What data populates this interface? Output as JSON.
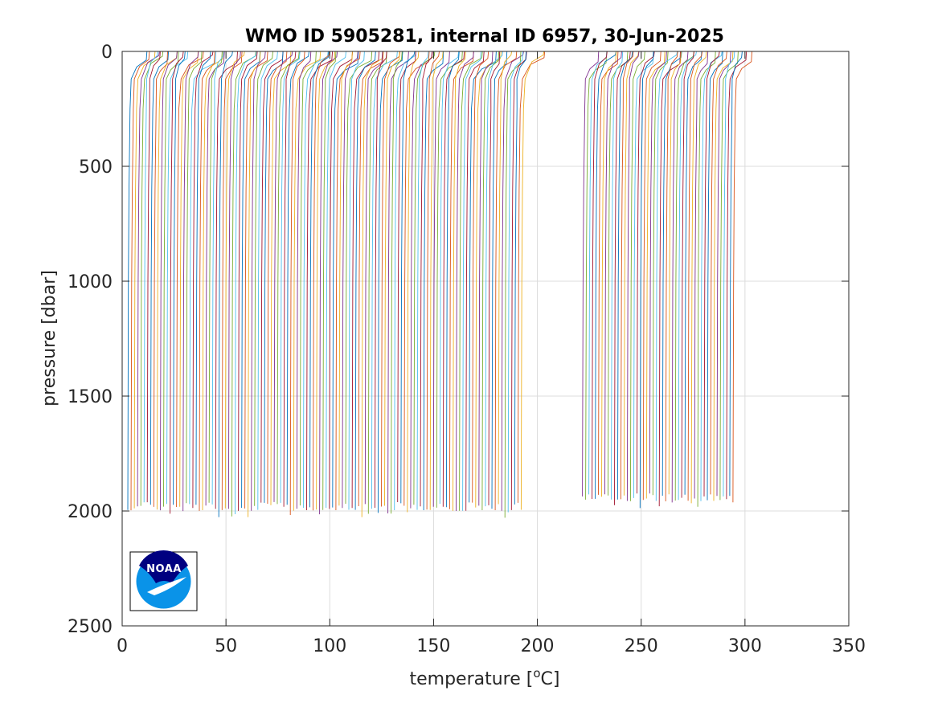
{
  "chart_data": {
    "type": "line",
    "title": "WMO ID 5905281, internal ID 6957, 30-Jun-2025",
    "xlabel_main": "temperature [",
    "xlabel_sup": "o",
    "xlabel_end": "C]",
    "ylabel": "pressure [dbar]",
    "xlim": [
      0,
      350
    ],
    "ylim": [
      0,
      2500
    ],
    "y_reversed": true,
    "grid": true,
    "x_ticks": [
      "0",
      "50",
      "100",
      "150",
      "200",
      "250",
      "300",
      "350"
    ],
    "x_tick_values": [
      0,
      50,
      100,
      150,
      200,
      250,
      300,
      350
    ],
    "y_ticks": [
      "0",
      "500",
      "1000",
      "1500",
      "2000",
      "2500"
    ],
    "y_tick_values": [
      0,
      500,
      1000,
      1500,
      2000,
      2500
    ],
    "series_colors": [
      "#0072bd",
      "#d95319",
      "#edb120",
      "#7e2f8e",
      "#77ac30",
      "#4dbeee",
      "#a2142f"
    ],
    "profile_groups": [
      {
        "deep_start": 3.0,
        "deep_end": 192.5,
        "count": 122,
        "surface_offset_min": 5,
        "surface_offset_max": 13,
        "bottom_pressure": 2000
      },
      {
        "deep_start": 222.0,
        "deep_end": 294.5,
        "count": 48,
        "surface_offset_min": 5,
        "surface_offset_max": 10,
        "bottom_pressure": 1960
      }
    ]
  },
  "logo": {
    "text": "NOAA",
    "primary_color": "#000080",
    "secondary_color": "#0a93e8"
  }
}
